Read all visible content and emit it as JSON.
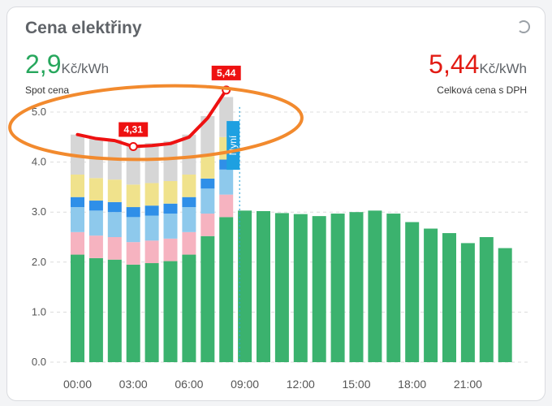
{
  "card": {
    "title": "Cena elektřiny",
    "spot": {
      "value": "2,9",
      "unit": "Kč/kWh",
      "label": "Spot cena"
    },
    "total": {
      "value": "5,44",
      "unit": "Kč/kWh",
      "label": "Celková cena s DPH"
    }
  },
  "colors": {
    "spot": "#3bb26e",
    "component_pink": "#f6b3c0",
    "component_lightblue": "#8ec9ec",
    "component_blue": "#2f8fe8",
    "component_yellow": "#f0e28c",
    "component_gray": "#d6d6d6",
    "line": "#ee1111",
    "annotation": "#f28a2e"
  },
  "chart_data": {
    "type": "bar",
    "title": "",
    "ylim": [
      0,
      5.5
    ],
    "y_ticks": [
      "0.0",
      "1.0",
      "2.0",
      "3.0",
      "4.0",
      "5.0"
    ],
    "x_ticks": [
      "00:00",
      "03:00",
      "06:00",
      "09:00",
      "12:00",
      "15:00",
      "18:00",
      "21:00"
    ],
    "hours": [
      0,
      1,
      2,
      3,
      4,
      5,
      6,
      7,
      8,
      9,
      10,
      11,
      12,
      13,
      14,
      15,
      16,
      17,
      18,
      19,
      20,
      21,
      22,
      23
    ],
    "spot": [
      2.15,
      2.08,
      2.05,
      1.95,
      1.98,
      2.02,
      2.15,
      2.52,
      2.9,
      3.03,
      3.02,
      2.98,
      2.96,
      2.92,
      2.97,
      3.0,
      3.03,
      2.97,
      2.8,
      2.67,
      2.58,
      2.38,
      2.5,
      2.28
    ],
    "stacked_hours": 9,
    "components": [
      {
        "color": "component_pink",
        "values": [
          0.45,
          0.45,
          0.45,
          0.45,
          0.45,
          0.45,
          0.45,
          0.45,
          0.45
        ]
      },
      {
        "color": "component_lightblue",
        "values": [
          0.5,
          0.5,
          0.5,
          0.5,
          0.5,
          0.5,
          0.5,
          0.5,
          0.5
        ]
      },
      {
        "color": "component_blue",
        "values": [
          0.2,
          0.2,
          0.2,
          0.2,
          0.2,
          0.2,
          0.2,
          0.2,
          0.2
        ]
      },
      {
        "color": "component_yellow",
        "values": [
          0.45,
          0.45,
          0.45,
          0.45,
          0.45,
          0.45,
          0.45,
          0.45,
          0.45
        ]
      },
      {
        "color": "component_gray",
        "values": [
          0.8,
          0.8,
          0.8,
          0.8,
          0.8,
          0.8,
          0.8,
          0.8,
          0.8
        ]
      }
    ],
    "total_line": [
      4.55,
      4.47,
      4.43,
      4.31,
      4.33,
      4.37,
      4.5,
      4.88,
      5.44
    ],
    "min_point": {
      "hour": 3,
      "value": 4.31,
      "label": "4,31"
    },
    "max_point": {
      "hour": 8,
      "value": 5.44,
      "label": "5,44"
    },
    "now_hour": 8,
    "now_label": "Nyní",
    "grid": true
  }
}
